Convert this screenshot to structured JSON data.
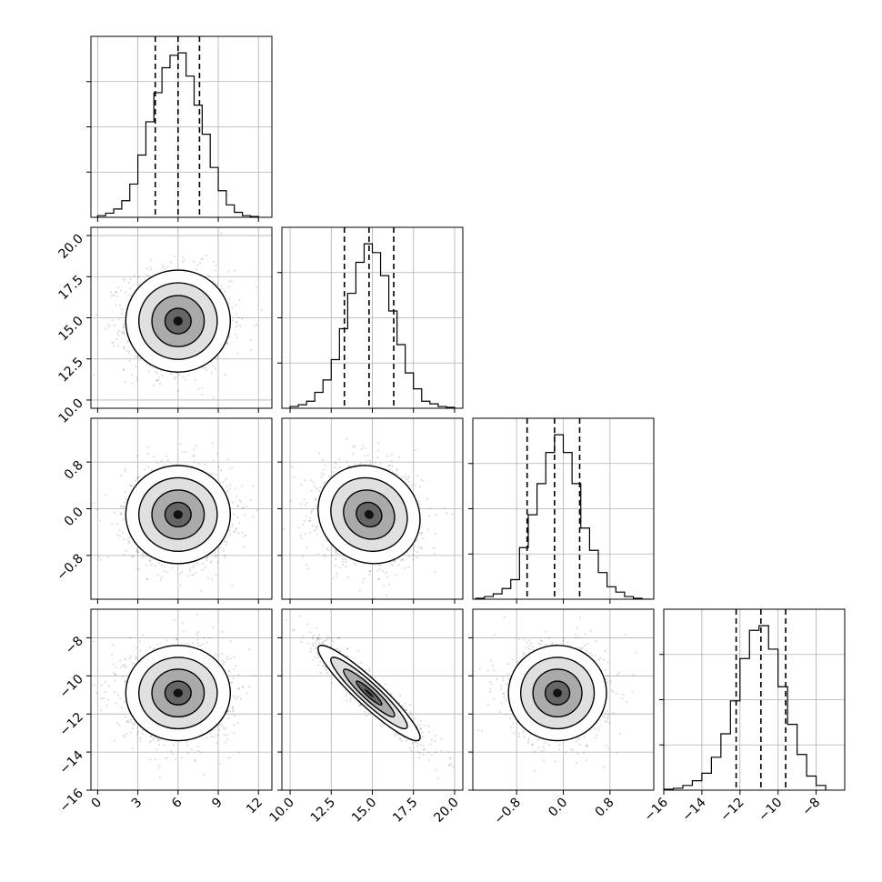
{
  "chart_data": {
    "type": "corner",
    "grid": true,
    "parameters": 4,
    "axis_labels": [
      "",
      "",
      "",
      ""
    ],
    "ranges": [
      [
        -0.5,
        13.0
      ],
      [
        9.5,
        20.5
      ],
      [
        -1.55,
        1.55
      ],
      [
        -16.0,
        -6.5
      ]
    ],
    "x_tick_labels": [
      [
        "0",
        "3",
        "6",
        "9",
        "12"
      ],
      [
        "10.0",
        "12.5",
        "15.0",
        "17.5",
        "20.0"
      ],
      [
        "−0.8",
        "0.0",
        "0.8"
      ],
      [
        "−16",
        "−14",
        "−12",
        "−10",
        "−8"
      ]
    ],
    "x_tick_values": [
      [
        0,
        3,
        6,
        9,
        12
      ],
      [
        10.0,
        12.5,
        15.0,
        17.5,
        20.0
      ],
      [
        -0.8,
        0.0,
        0.8
      ],
      [
        -16,
        -14,
        -12,
        -10,
        -8
      ]
    ],
    "y_tick_labels": [
      [],
      [
        "10.0",
        "12.5",
        "15.0",
        "17.5",
        "20.0"
      ],
      [
        "−0.8",
        "0.0",
        "0.8"
      ],
      [
        "−16",
        "−14",
        "−12",
        "−10",
        "−8"
      ]
    ],
    "y_tick_values": [
      [],
      [
        10.0,
        12.5,
        15.0,
        17.5,
        20.0
      ],
      [
        -0.8,
        0.0,
        0.8
      ],
      [
        -16,
        -14,
        -12,
        -10,
        -8
      ]
    ],
    "marginals": [
      {
        "param": 0,
        "quantiles": [
          4.3,
          6.0,
          7.6
        ],
        "bin_edges": [
          0.0,
          0.6,
          1.2,
          1.8,
          2.4,
          3.0,
          3.6,
          4.2,
          4.8,
          5.4,
          6.0,
          6.6,
          7.2,
          7.8,
          8.4,
          9.0,
          9.6,
          10.2,
          10.8,
          11.4,
          12.0
        ],
        "counts": [
          2,
          5,
          10,
          20,
          40,
          75,
          115,
          150,
          180,
          195,
          198,
          170,
          135,
          100,
          60,
          32,
          15,
          6,
          2,
          1
        ]
      },
      {
        "param": 1,
        "quantiles": [
          13.3,
          14.8,
          16.3
        ],
        "bin_edges": [
          10.0,
          10.5,
          11.0,
          11.5,
          12.0,
          12.5,
          13.0,
          13.5,
          14.0,
          14.5,
          15.0,
          15.5,
          16.0,
          16.5,
          17.0,
          17.5,
          18.0,
          18.5,
          19.0,
          19.5,
          20.0
        ],
        "counts": [
          2,
          4,
          8,
          18,
          32,
          55,
          90,
          130,
          165,
          186,
          176,
          150,
          110,
          72,
          40,
          22,
          8,
          5,
          2,
          1
        ]
      },
      {
        "param": 2,
        "quantiles": [
          -0.62,
          -0.15,
          0.28
        ],
        "bin_edges": [
          -1.5,
          -1.35,
          -1.2,
          -1.05,
          -0.9,
          -0.75,
          -0.6,
          -0.45,
          -0.3,
          -0.15,
          0.0,
          0.15,
          0.3,
          0.45,
          0.6,
          0.75,
          0.9,
          1.05,
          1.2,
          1.35,
          1.5
        ],
        "counts": [
          1,
          3,
          6,
          12,
          22,
          58,
          95,
          130,
          165,
          185,
          165,
          130,
          80,
          55,
          30,
          14,
          8,
          3,
          1,
          0
        ]
      },
      {
        "param": 3,
        "quantiles": [
          -12.2,
          -10.9,
          -9.6
        ],
        "bin_edges": [
          -16.0,
          -15.5,
          -15.0,
          -14.5,
          -14.0,
          -13.5,
          -13.0,
          -12.5,
          -12.0,
          -11.5,
          -11.0,
          -10.5,
          -10.0,
          -9.5,
          -9.0,
          -8.5,
          -8.0,
          -7.5
        ],
        "counts": [
          1,
          2,
          5,
          10,
          18,
          35,
          60,
          95,
          140,
          170,
          175,
          150,
          110,
          70,
          38,
          15,
          5
        ]
      }
    ],
    "joints": [
      {
        "x_param": 0,
        "y_param": 1,
        "mean": [
          6.0,
          14.8
        ],
        "sd": [
          1.95,
          1.55
        ],
        "rho": 0.0
      },
      {
        "x_param": 0,
        "y_param": 2,
        "mean": [
          6.0,
          -0.1
        ],
        "sd": [
          1.95,
          0.42
        ],
        "rho": 0.0
      },
      {
        "x_param": 1,
        "y_param": 2,
        "mean": [
          14.8,
          -0.1
        ],
        "sd": [
          1.55,
          0.42
        ],
        "rho": -0.1
      },
      {
        "x_param": 0,
        "y_param": 3,
        "mean": [
          6.0,
          -10.9
        ],
        "sd": [
          1.95,
          1.25
        ],
        "rho": 0.0
      },
      {
        "x_param": 1,
        "y_param": 3,
        "mean": [
          14.8,
          -10.9
        ],
        "sd": [
          1.55,
          1.25
        ],
        "rho": -0.93
      },
      {
        "x_param": 2,
        "y_param": 3,
        "mean": [
          -0.1,
          -10.9
        ],
        "sd": [
          0.42,
          1.25
        ],
        "rho": 0.0
      }
    ],
    "contour_levels_sigma": [
      0.5,
      1.0,
      1.5,
      2.0
    ]
  }
}
